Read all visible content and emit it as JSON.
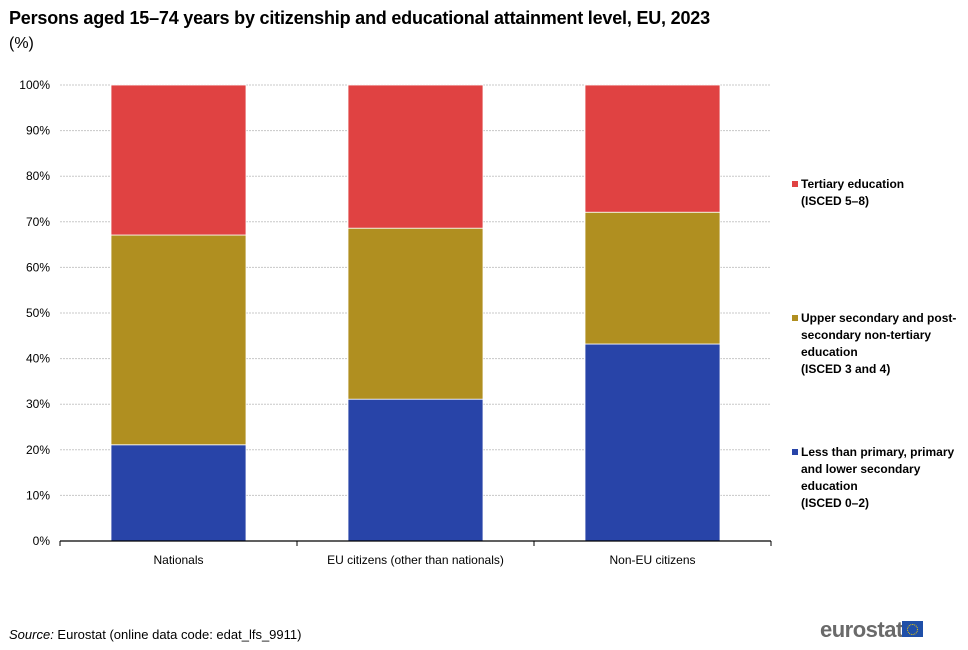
{
  "chart_data": {
    "type": "bar",
    "stacked": true,
    "title": "Persons aged 15–74 years by citizenship and educational attainment level, EU, 2023",
    "subtitle": "(%)",
    "xlabel": "",
    "ylabel": "",
    "ylim": [
      0,
      100
    ],
    "yticks": [
      "0%",
      "10%",
      "20%",
      "30%",
      "40%",
      "50%",
      "60%",
      "70%",
      "80%",
      "90%",
      "100%"
    ],
    "grid": true,
    "legend_position": "right",
    "categories": [
      "Nationals",
      "EU citizens (other than nationals)",
      "Non-EU citizens"
    ],
    "series": [
      {
        "name": "Less than primary, primary and lower secondary education (ISCED 0–2)",
        "color": "#2844a8",
        "values": [
          21.1,
          31.1,
          43.2
        ]
      },
      {
        "name": "Upper secondary and post-secondary non-tertiary education (ISCED 3 and 4)",
        "color": "#b08f20",
        "values": [
          46.0,
          37.5,
          28.9
        ]
      },
      {
        "name": "Tertiary education (ISCED 5–8)",
        "color": "#e04242",
        "values": [
          32.9,
          31.4,
          27.9
        ]
      }
    ]
  },
  "legend": [
    {
      "label": "Tertiary education\n(ISCED 5–8)",
      "color": "#e04242"
    },
    {
      "label": "Upper secondary and post-\nsecondary non-tertiary\neducation\n(ISCED 3 and 4)",
      "color": "#b08f20"
    },
    {
      "label": "Less than primary, primary\nand lower secondary\neducation\n(ISCED 0–2)",
      "color": "#2844a8"
    }
  ],
  "source": {
    "prefix": "Source:",
    "text": " Eurostat (online data code: edat_lfs_9911)"
  },
  "logo": {
    "text": "eurostat"
  }
}
